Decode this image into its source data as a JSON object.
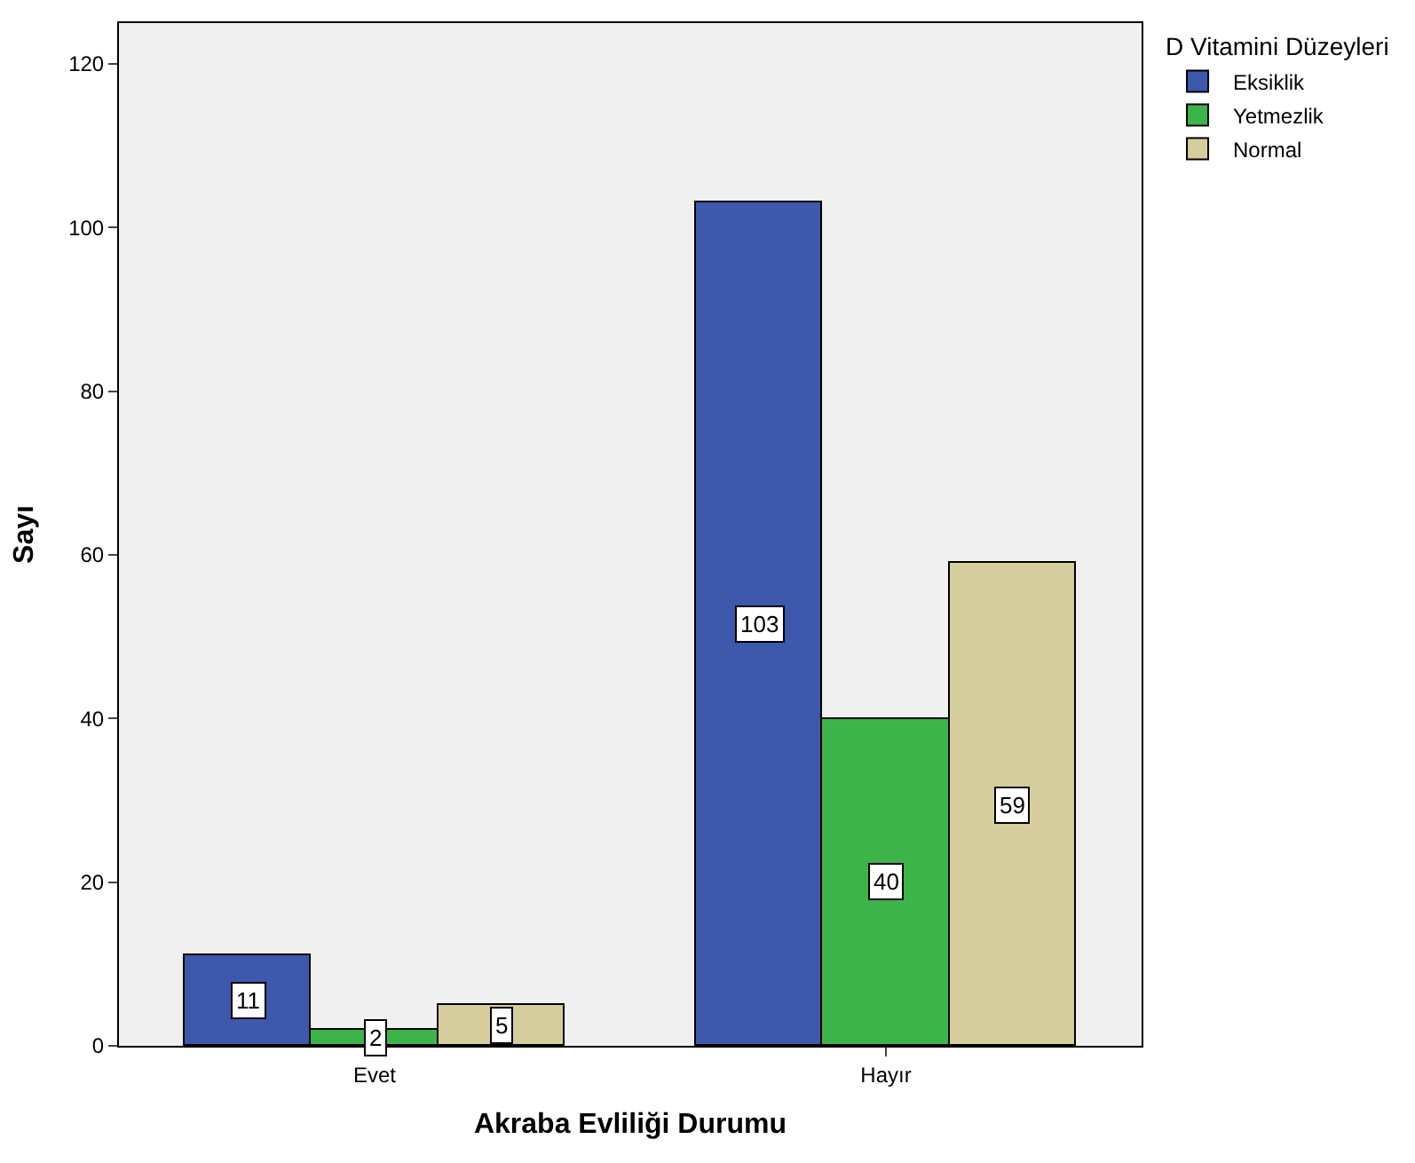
{
  "chart_data": {
    "type": "bar",
    "xlabel": "Akraba Evliliği Durumu",
    "ylabel": "Sayı",
    "legend_title": "D Vitamini Düzeyleri",
    "categories": [
      "Evet",
      "Hayır"
    ],
    "series": [
      {
        "name": "Eksiklik",
        "color": "#3e58ac",
        "values": [
          11,
          103
        ]
      },
      {
        "name": "Yetmezlik",
        "color": "#3cb44a",
        "values": [
          2,
          40
        ]
      },
      {
        "name": "Normal",
        "color": "#d5ce9c",
        "values": [
          5,
          59
        ]
      }
    ],
    "ylim": [
      0,
      125
    ],
    "yticks": [
      0,
      20,
      40,
      60,
      80,
      100,
      120
    ],
    "grid": false,
    "legend": "top right",
    "data_labels": true
  }
}
